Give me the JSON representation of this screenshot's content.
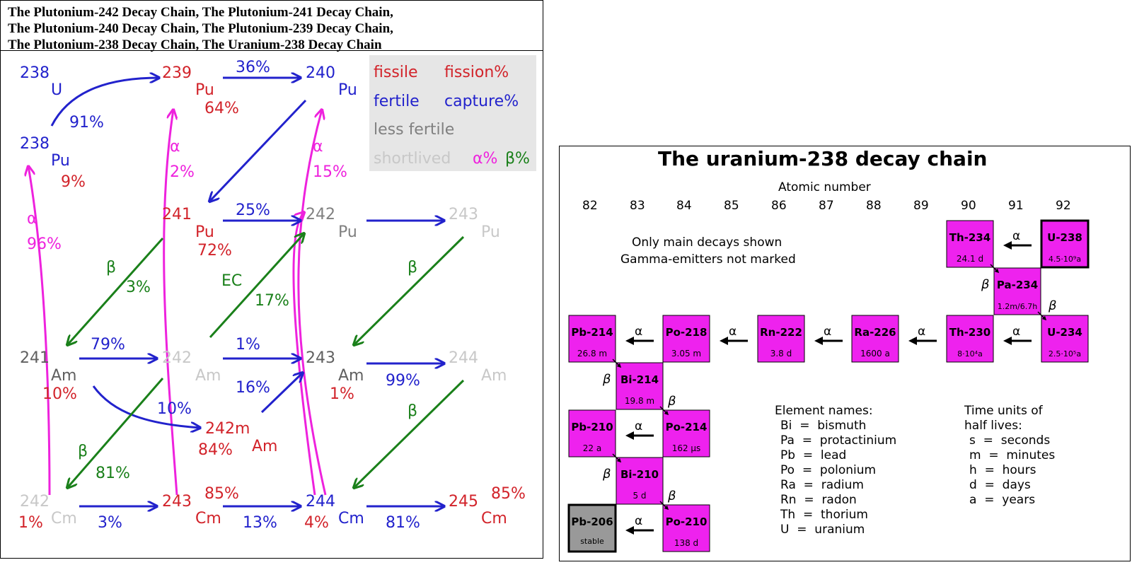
{
  "caption": {
    "line1": "The Plutonium-242 Decay Chain, The Plutonium-241 Decay Chain,",
    "line2": "The Plutonium-240 Decay Chain, The Plutonium-239 Decay Chain,",
    "line3": "The Plutonium-238 Decay Chain, The Uranium-238 Decay Chain"
  },
  "colors": {
    "fissile": "#d2232a",
    "fertile": "#2222cc",
    "less_fertile": "#808080",
    "shortlived": "#c8c8c8",
    "alpha": "#ee22dd",
    "beta": "#1a801a",
    "nuclide_box": "#ee22ee",
    "stable_box": "#999999"
  },
  "left_legend": {
    "fissile": "fissile",
    "fission_pct": "fission%",
    "fertile": "fertile",
    "capture_pct": "capture%",
    "less_fertile": "less fertile",
    "shortlived": "shortlived",
    "alpha_pct": "α%",
    "beta_pct": "β%"
  },
  "left_nuclides": [
    {
      "mass": "238",
      "symbol": "U",
      "pct": ""
    },
    {
      "mass": "239",
      "symbol": "Pu",
      "pct": "64%"
    },
    {
      "mass": "240",
      "symbol": "Pu",
      "pct": ""
    },
    {
      "mass": "238",
      "symbol": "Pu",
      "pct": "9%"
    },
    {
      "mass": "241",
      "symbol": "Pu",
      "pct": "72%"
    },
    {
      "mass": "242",
      "symbol": "Pu",
      "pct": ""
    },
    {
      "mass": "243",
      "symbol": "Pu",
      "pct": ""
    },
    {
      "mass": "241",
      "symbol": "Am",
      "pct": "10%"
    },
    {
      "mass": "242",
      "symbol": "Am",
      "pct": ""
    },
    {
      "mass": "243",
      "symbol": "Am",
      "pct": "1%"
    },
    {
      "mass": "244",
      "symbol": "Am",
      "pct": ""
    },
    {
      "mass": "242m",
      "symbol": "Am",
      "pct": "84%"
    },
    {
      "mass": "242",
      "symbol": "Cm",
      "pct": "1%"
    },
    {
      "mass": "243",
      "symbol": "Cm",
      "pct": "85%"
    },
    {
      "mass": "244",
      "symbol": "Cm",
      "pct": "4%"
    },
    {
      "mass": "245",
      "symbol": "Cm",
      "pct": "85%"
    }
  ],
  "left_labels": {
    "u238_pu239": "91%",
    "pu239_pu240": "36%",
    "pu241_pu242": "25%",
    "pu241_beta": "β",
    "pu241_beta_pct": "3%",
    "ec": "EC",
    "ec_pct": "17%",
    "pu243_beta": "β",
    "pu238_alpha": "α",
    "pu238_alpha_pct": "96%",
    "cm242_alpha_pct": "2%",
    "cm244_alpha_pct": "15%",
    "alpha": "α",
    "am241_am242": "79%",
    "am242_am243": "1%",
    "am242m_am243": "16%",
    "am241_am242m": "10%",
    "am243_am244": "99%",
    "am242_beta": "β",
    "am242_beta_pct": "81%",
    "am244_beta": "β",
    "cm242_cm243": "3%",
    "cm243_cm244": "13%",
    "cm244_cm245": "81%"
  },
  "right": {
    "title": "The uranium-238 decay chain",
    "atomic_label": "Atomic number",
    "atomic_numbers": [
      "82",
      "83",
      "84",
      "85",
      "86",
      "87",
      "88",
      "89",
      "90",
      "91",
      "92"
    ],
    "note1": "Only main decays shown",
    "note2": "Gamma-emitters not marked",
    "nuclides": [
      {
        "name": "U-238",
        "half_life": "4.5·10⁹a"
      },
      {
        "name": "Th-234",
        "half_life": "24.1 d"
      },
      {
        "name": "Pa-234",
        "half_life": "1.2m/6.7h"
      },
      {
        "name": "U-234",
        "half_life": "2.5·10⁵a"
      },
      {
        "name": "Th-230",
        "half_life": "8·10⁴a"
      },
      {
        "name": "Ra-226",
        "half_life": "1600 a"
      },
      {
        "name": "Rn-222",
        "half_life": "3.8 d"
      },
      {
        "name": "Po-218",
        "half_life": "3.05 m"
      },
      {
        "name": "Pb-214",
        "half_life": "26.8 m"
      },
      {
        "name": "Bi-214",
        "half_life": "19.8 m"
      },
      {
        "name": "Po-214",
        "half_life": "162 μs"
      },
      {
        "name": "Pb-210",
        "half_life": "22 a"
      },
      {
        "name": "Bi-210",
        "half_life": "5 d"
      },
      {
        "name": "Po-210",
        "half_life": "138 d"
      },
      {
        "name": "Pb-206",
        "half_life": "stable"
      }
    ],
    "alpha": "α",
    "beta": "β",
    "elements_title": "Element names:",
    "elements": [
      "Bi  =  bismuth",
      "Pa  =  protactinium",
      "Pb  =  lead",
      "Po  =  polonium",
      "Ra  =  radium",
      "Rn  =  radon",
      "Th  =  thorium",
      "U  =  uranium"
    ],
    "time_title1": "Time units of",
    "time_title2": "half lives:",
    "time_units": [
      "s  =  seconds",
      "m  =  minutes",
      "h  =  hours",
      "d  =  days",
      "a  =  years"
    ]
  }
}
